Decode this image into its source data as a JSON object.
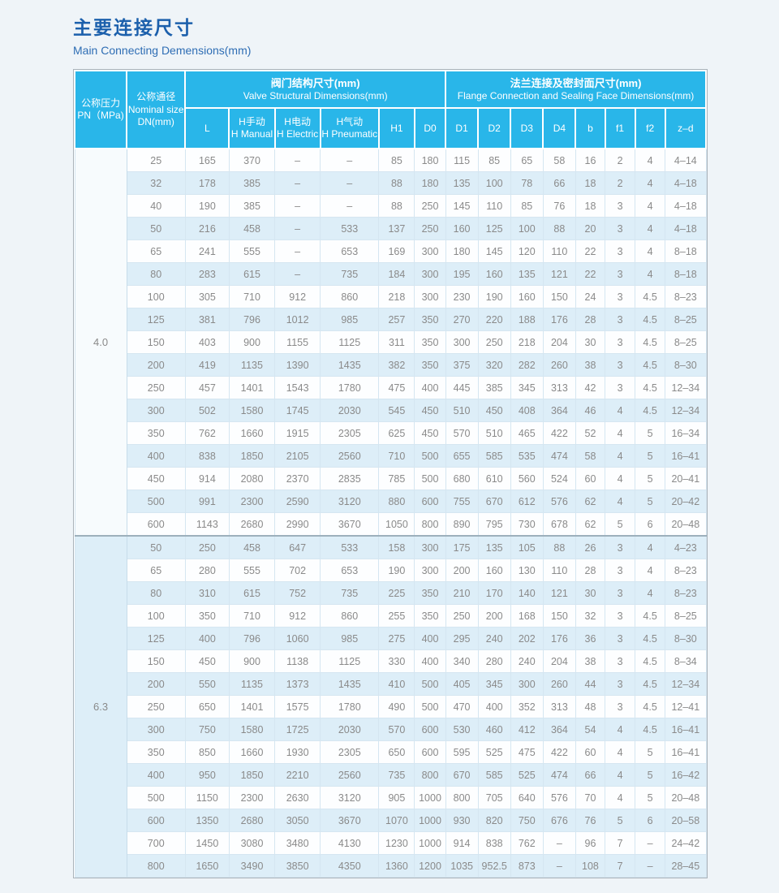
{
  "page": {
    "title_zh": "主要连接尺寸",
    "subtitle_en": "Main Connecting Demensions(mm)"
  },
  "colors": {
    "header_bg": "#29b6e9",
    "stripe_row": "#ddeef8",
    "title_blue": "#1c60ac",
    "cell_text": "#8a8a8a",
    "page_bg": "#eff4f8"
  },
  "table": {
    "header": {
      "pn_zh": "公称压力",
      "pn_en": "PN（MPa)",
      "dn_zh": "公称通径",
      "dn_en1": "Nominal size",
      "dn_en2": "DN(mm)",
      "valve_group_zh": "阀门结构尺寸(mm)",
      "valve_group_en": "Valve Structural Dimensions(mm)",
      "flange_group_zh": "法兰连接及密封面尺寸(mm)",
      "flange_group_en": "Flange Connection and Sealing Face Dimensions(mm)",
      "cols": {
        "l": "L",
        "h_manual_zh": "H手动",
        "h_manual_en": "H Manual",
        "h_electric_zh": "H电动",
        "h_electric_en": "H Electric",
        "h_pneumatic_zh": "H气动",
        "h_pneumatic_en": "H Pneumatic",
        "h1": "H1",
        "d0": "D0",
        "d1": "D1",
        "d2": "D2",
        "d3": "D3",
        "d4": "D4",
        "b": "b",
        "f1": "f1",
        "f2": "f2",
        "zd": "z–d"
      }
    },
    "groups": [
      {
        "pn": "4.0",
        "rows": [
          [
            "25",
            "165",
            "370",
            "–",
            "–",
            "85",
            "180",
            "115",
            "85",
            "65",
            "58",
            "16",
            "2",
            "4",
            "4–14"
          ],
          [
            "32",
            "178",
            "385",
            "–",
            "–",
            "88",
            "180",
            "135",
            "100",
            "78",
            "66",
            "18",
            "2",
            "4",
            "4–18"
          ],
          [
            "40",
            "190",
            "385",
            "–",
            "–",
            "88",
            "250",
            "145",
            "110",
            "85",
            "76",
            "18",
            "3",
            "4",
            "4–18"
          ],
          [
            "50",
            "216",
            "458",
            "–",
            "533",
            "137",
            "250",
            "160",
            "125",
            "100",
            "88",
            "20",
            "3",
            "4",
            "4–18"
          ],
          [
            "65",
            "241",
            "555",
            "–",
            "653",
            "169",
            "300",
            "180",
            "145",
            "120",
            "110",
            "22",
            "3",
            "4",
            "8–18"
          ],
          [
            "80",
            "283",
            "615",
            "–",
            "735",
            "184",
            "300",
            "195",
            "160",
            "135",
            "121",
            "22",
            "3",
            "4",
            "8–18"
          ],
          [
            "100",
            "305",
            "710",
            "912",
            "860",
            "218",
            "300",
            "230",
            "190",
            "160",
            "150",
            "24",
            "3",
            "4.5",
            "8–23"
          ],
          [
            "125",
            "381",
            "796",
            "1012",
            "985",
            "257",
            "350",
            "270",
            "220",
            "188",
            "176",
            "28",
            "3",
            "4.5",
            "8–25"
          ],
          [
            "150",
            "403",
            "900",
            "1155",
            "1125",
            "311",
            "350",
            "300",
            "250",
            "218",
            "204",
            "30",
            "3",
            "4.5",
            "8–25"
          ],
          [
            "200",
            "419",
            "1135",
            "1390",
            "1435",
            "382",
            "350",
            "375",
            "320",
            "282",
            "260",
            "38",
            "3",
            "4.5",
            "8–30"
          ],
          [
            "250",
            "457",
            "1401",
            "1543",
            "1780",
            "475",
            "400",
            "445",
            "385",
            "345",
            "313",
            "42",
            "3",
            "4.5",
            "12–34"
          ],
          [
            "300",
            "502",
            "1580",
            "1745",
            "2030",
            "545",
            "450",
            "510",
            "450",
            "408",
            "364",
            "46",
            "4",
            "4.5",
            "12–34"
          ],
          [
            "350",
            "762",
            "1660",
            "1915",
            "2305",
            "625",
            "450",
            "570",
            "510",
            "465",
            "422",
            "52",
            "4",
            "5",
            "16–34"
          ],
          [
            "400",
            "838",
            "1850",
            "2105",
            "2560",
            "710",
            "500",
            "655",
            "585",
            "535",
            "474",
            "58",
            "4",
            "5",
            "16–41"
          ],
          [
            "450",
            "914",
            "2080",
            "2370",
            "2835",
            "785",
            "500",
            "680",
            "610",
            "560",
            "524",
            "60",
            "4",
            "5",
            "20–41"
          ],
          [
            "500",
            "991",
            "2300",
            "2590",
            "3120",
            "880",
            "600",
            "755",
            "670",
            "612",
            "576",
            "62",
            "4",
            "5",
            "20–42"
          ],
          [
            "600",
            "1143",
            "2680",
            "2990",
            "3670",
            "1050",
            "800",
            "890",
            "795",
            "730",
            "678",
            "62",
            "5",
            "6",
            "20–48"
          ]
        ]
      },
      {
        "pn": "6.3",
        "rows": [
          [
            "50",
            "250",
            "458",
            "647",
            "533",
            "158",
            "300",
            "175",
            "135",
            "105",
            "88",
            "26",
            "3",
            "4",
            "4–23"
          ],
          [
            "65",
            "280",
            "555",
            "702",
            "653",
            "190",
            "300",
            "200",
            "160",
            "130",
            "110",
            "28",
            "3",
            "4",
            "8–23"
          ],
          [
            "80",
            "310",
            "615",
            "752",
            "735",
            "225",
            "350",
            "210",
            "170",
            "140",
            "121",
            "30",
            "3",
            "4",
            "8–23"
          ],
          [
            "100",
            "350",
            "710",
            "912",
            "860",
            "255",
            "350",
            "250",
            "200",
            "168",
            "150",
            "32",
            "3",
            "4.5",
            "8–25"
          ],
          [
            "125",
            "400",
            "796",
            "1060",
            "985",
            "275",
            "400",
            "295",
            "240",
            "202",
            "176",
            "36",
            "3",
            "4.5",
            "8–30"
          ],
          [
            "150",
            "450",
            "900",
            "1138",
            "1125",
            "330",
            "400",
            "340",
            "280",
            "240",
            "204",
            "38",
            "3",
            "4.5",
            "8–34"
          ],
          [
            "200",
            "550",
            "1135",
            "1373",
            "1435",
            "410",
            "500",
            "405",
            "345",
            "300",
            "260",
            "44",
            "3",
            "4.5",
            "12–34"
          ],
          [
            "250",
            "650",
            "1401",
            "1575",
            "1780",
            "490",
            "500",
            "470",
            "400",
            "352",
            "313",
            "48",
            "3",
            "4.5",
            "12–41"
          ],
          [
            "300",
            "750",
            "1580",
            "1725",
            "2030",
            "570",
            "600",
            "530",
            "460",
            "412",
            "364",
            "54",
            "4",
            "4.5",
            "16–41"
          ],
          [
            "350",
            "850",
            "1660",
            "1930",
            "2305",
            "650",
            "600",
            "595",
            "525",
            "475",
            "422",
            "60",
            "4",
            "5",
            "16–41"
          ],
          [
            "400",
            "950",
            "1850",
            "2210",
            "2560",
            "735",
            "800",
            "670",
            "585",
            "525",
            "474",
            "66",
            "4",
            "5",
            "16–42"
          ],
          [
            "500",
            "1150",
            "2300",
            "2630",
            "3120",
            "905",
            "1000",
            "800",
            "705",
            "640",
            "576",
            "70",
            "4",
            "5",
            "20–48"
          ],
          [
            "600",
            "1350",
            "2680",
            "3050",
            "3670",
            "1070",
            "1000",
            "930",
            "820",
            "750",
            "676",
            "76",
            "5",
            "6",
            "20–58"
          ],
          [
            "700",
            "1450",
            "3080",
            "3480",
            "4130",
            "1230",
            "1000",
            "914",
            "838",
            "762",
            "–",
            "96",
            "7",
            "–",
            "24–42"
          ],
          [
            "800",
            "1650",
            "3490",
            "3850",
            "4350",
            "1360",
            "1200",
            "1035",
            "952.5",
            "873",
            "–",
            "108",
            "7",
            "–",
            "28–45"
          ]
        ]
      }
    ]
  }
}
